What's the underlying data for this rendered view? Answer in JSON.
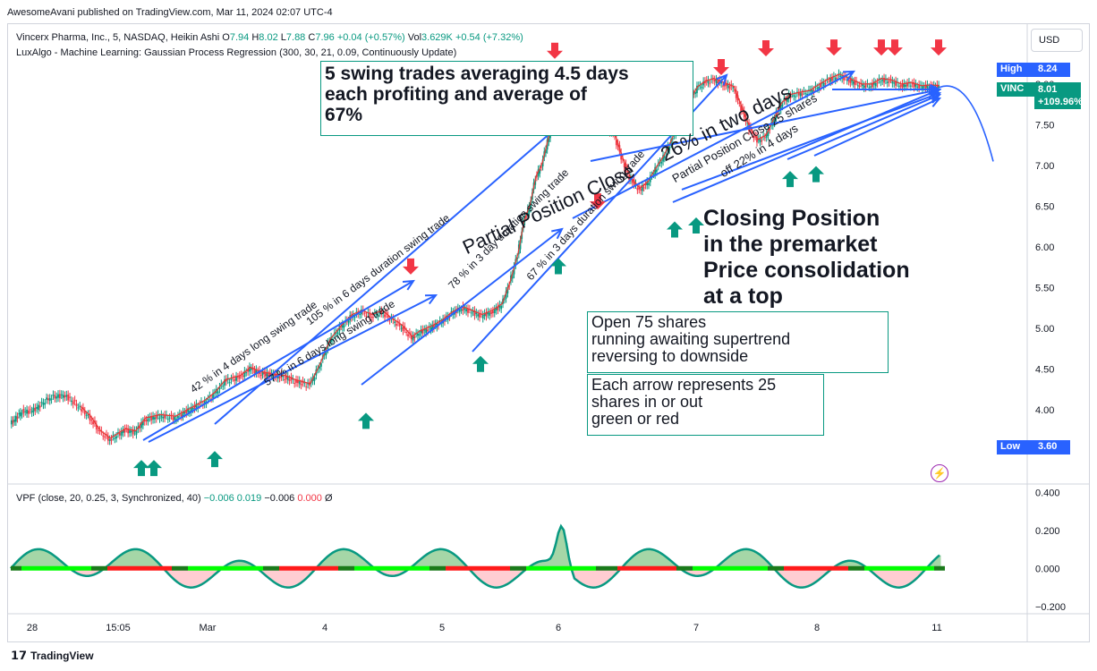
{
  "header": "AwesomeAvani published on TradingView.com, Mar 11, 2024 02:07 UTC-4",
  "legend": {
    "symbol": "Vincerx Pharma, Inc., 5, NASDAQ, Heikin Ashi",
    "o_label": "O",
    "o_value": "7.94",
    "h_label": "H",
    "h_value": "8.02",
    "l_label": "L",
    "l_value": "7.88",
    "c_label": "C",
    "c_value": "7.96",
    "change": "+0.04 (+0.57%)",
    "vol_label": "Vol",
    "vol_value": "3.629K",
    "vol_change": "+0.54 (+7.32%)",
    "indicator": "LuxAlgo - Machine Learning: Gaussian Process Regression (300, 30, 21, 0.09, Continuously Update)",
    "vpf": "VPF (close, 20, 0.25, 3, Synchronized, 40)",
    "vpf_v1": "−0.006",
    "vpf_v2": "0.019",
    "vpf_v3": "−0.006",
    "vpf_v4": "0.000",
    "vpf_v5": "Ø"
  },
  "currency_button": "USD",
  "tags": {
    "high_label": "High",
    "high_value": "8.24",
    "sym_label": "VINC",
    "sym_value": "8.01",
    "sym_change": "+109.96%",
    "low_label": "Low",
    "low_value": "3.60"
  },
  "colors": {
    "up": "#089981",
    "down": "#f23645",
    "arrow_blue": "#2962ff",
    "regression": "#e53935",
    "osc_green": "#00ff00",
    "osc_red": "#ff1a1a"
  },
  "annotations": {
    "summary": "5 swing trades averaging  4.5 days\neach   profiting and average of\n67%",
    "closing": "Closing Position\nin the premarket\nPrice consolidation\nat a top",
    "open": "Open 75 shares\nrunning awaiting supertrend\nreversing to downside",
    "each_arrow": "Each arrow represents 25\nshares in or out\ngreen or red",
    "t1": "42 % in 4 days long swing trade",
    "t2": "105 % in 6 days duration swing trade",
    "t3": "57 % in  6 days long swing trade",
    "t4": "78 % in 3 day duration swing trade",
    "t5": "67 % in 3 days duration swing trade",
    "t6": "Partial Position Close",
    "t7": "26% in two days",
    "t8": "Partial Position Close 25 shares",
    "t9": "off 22% in 4 days"
  },
  "footer": {
    "logo": "TradingView"
  },
  "chart_data": [
    {
      "type": "candlestick",
      "title": "Vincerx Pharma, Inc., 5, NASDAQ, Heikin Ashi",
      "x_ticks": [
        "28",
        "15:05",
        "Mar",
        "4",
        "5",
        "6",
        "7",
        "8",
        "11"
      ],
      "y_ticks": [
        "3.50",
        "4.00",
        "4.50",
        "5.00",
        "5.50",
        "6.00",
        "6.50",
        "7.00",
        "7.50",
        "8.00"
      ],
      "ylim": [
        3.45,
        8.45
      ],
      "high": 8.24,
      "low": 3.6,
      "last": 8.01,
      "price_path": [
        [
          0,
          3.82
        ],
        [
          12,
          3.98
        ],
        [
          22,
          3.98
        ],
        [
          40,
          4.15
        ],
        [
          55,
          4.18
        ],
        [
          70,
          4.02
        ],
        [
          80,
          3.9
        ],
        [
          90,
          3.72
        ],
        [
          100,
          3.63
        ],
        [
          115,
          3.75
        ],
        [
          125,
          3.72
        ],
        [
          135,
          3.88
        ],
        [
          150,
          3.92
        ],
        [
          165,
          3.9
        ],
        [
          180,
          4.0
        ],
        [
          195,
          4.1
        ],
        [
          205,
          4.2
        ],
        [
          215,
          4.35
        ],
        [
          230,
          4.4
        ],
        [
          240,
          4.5
        ],
        [
          250,
          4.45
        ],
        [
          262,
          4.42
        ],
        [
          275,
          4.4
        ],
        [
          285,
          4.35
        ],
        [
          300,
          4.3
        ],
        [
          310,
          4.55
        ],
        [
          320,
          4.85
        ],
        [
          330,
          5.0
        ],
        [
          342,
          5.15
        ],
        [
          352,
          5.2
        ],
        [
          362,
          5.15
        ],
        [
          372,
          5.2
        ],
        [
          382,
          5.1
        ],
        [
          392,
          5.02
        ],
        [
          402,
          4.88
        ],
        [
          410,
          4.95
        ],
        [
          420,
          5.0
        ],
        [
          432,
          5.08
        ],
        [
          442,
          5.18
        ],
        [
          452,
          5.25
        ],
        [
          462,
          5.2
        ],
        [
          472,
          5.15
        ],
        [
          482,
          5.2
        ],
        [
          492,
          5.28
        ],
        [
          500,
          5.55
        ],
        [
          508,
          5.9
        ],
        [
          514,
          6.3
        ],
        [
          520,
          6.5
        ],
        [
          526,
          6.85
        ],
        [
          532,
          7.0
        ],
        [
          538,
          7.3
        ],
        [
          544,
          7.55
        ],
        [
          552,
          7.58
        ],
        [
          562,
          7.5
        ],
        [
          572,
          7.55
        ],
        [
          582,
          7.45
        ],
        [
          594,
          7.5
        ],
        [
          604,
          7.4
        ],
        [
          612,
          7.1
        ],
        [
          620,
          6.85
        ],
        [
          630,
          6.7
        ],
        [
          638,
          6.78
        ],
        [
          646,
          6.95
        ],
        [
          654,
          7.1
        ],
        [
          662,
          7.3
        ],
        [
          670,
          7.55
        ],
        [
          678,
          7.75
        ],
        [
          688,
          7.95
        ],
        [
          696,
          8.02
        ],
        [
          704,
          8.05
        ],
        [
          714,
          8.0
        ],
        [
          724,
          7.95
        ],
        [
          732,
          7.7
        ],
        [
          740,
          7.45
        ],
        [
          748,
          7.3
        ],
        [
          756,
          7.35
        ],
        [
          764,
          7.55
        ],
        [
          772,
          7.75
        ],
        [
          780,
          7.85
        ],
        [
          790,
          7.88
        ],
        [
          800,
          7.9
        ],
        [
          810,
          7.98
        ],
        [
          820,
          8.05
        ],
        [
          830,
          8.1
        ],
        [
          840,
          8.05
        ],
        [
          852,
          7.98
        ],
        [
          862,
          7.98
        ],
        [
          872,
          8.05
        ],
        [
          882,
          8.03
        ],
        [
          892,
          7.98
        ],
        [
          902,
          8.0
        ],
        [
          912,
          7.96
        ],
        [
          922,
          7.97
        ],
        [
          930,
          7.96
        ]
      ],
      "buy_arrows": [
        3.47,
        3.47,
        3.58,
        4.05,
        4.75,
        5.95,
        6.4,
        6.45,
        7.02,
        7.08
      ],
      "sell_arrows": [
        5.55,
        6.35,
        8.0,
        8.23,
        8.24,
        8.24,
        8.24,
        8.24,
        8.2
      ]
    },
    {
      "type": "area",
      "title": "VPF (close, 20, 0.25, 3, Synchronized, 40)",
      "y_ticks": [
        "0.400",
        "0.200",
        "0.000",
        "−0.200"
      ],
      "ylim": [
        -0.22,
        0.42
      ],
      "peak": 0.36
    }
  ]
}
